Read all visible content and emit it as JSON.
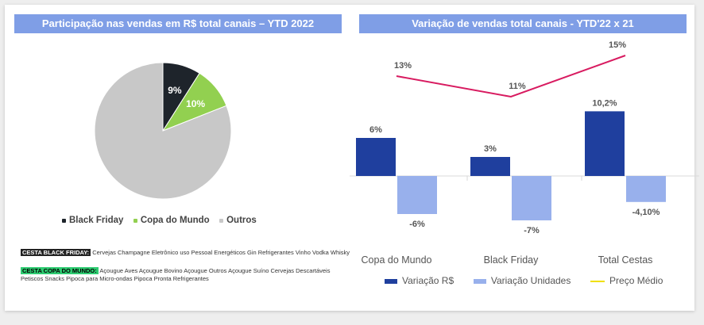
{
  "pie_panel": {
    "title": "Participação nas vendas em R$ total canais – YTD 2022",
    "legend": [
      "Black Friday",
      "Copa do Mundo",
      "Outros"
    ],
    "cesta_black_friday": {
      "label": "CESTA BLACK FRIDAY:",
      "items": "Cervejas Champagne Eletrônico uso Pessoal Energéticos Gin Refrigerantes Vinho Vodka Whisky"
    },
    "cesta_copa": {
      "label": "CESTA COPA DO MUNDO:",
      "items_line1": "Açougue Aves Açougue Bovino Açougue Outros Açougue Suíno Cervejas Descartáveis",
      "items_line2": "Petiscos Snacks Pipoca para Micro-ondas Pipoca Pronta Refrigerantes"
    }
  },
  "bar_panel": {
    "title": "Variação de vendas total canais - YTD'22 x 21",
    "legend": [
      "Variação R$",
      "Variação Unidades",
      "Preço Médio"
    ]
  },
  "colors": {
    "black_friday": "#1e242b",
    "copa": "#92d050",
    "outros": "#c8c8c8",
    "variacao_rs": "#1f3f9e",
    "variacao_unidades": "#98b0ec",
    "preco_medio": "#d81b60",
    "preco_medio_legend": "#f0e000"
  },
  "chart_data": [
    {
      "type": "pie",
      "title": "Participação nas vendas em R$ total canais – YTD 2022",
      "slices": [
        {
          "name": "Black Friday",
          "value": 9,
          "label": "9%"
        },
        {
          "name": "Copa do Mundo",
          "value": 10,
          "label": "10%"
        },
        {
          "name": "Outros",
          "value": 81,
          "label": ""
        }
      ],
      "legend_position": "bottom"
    },
    {
      "type": "bar",
      "title": "Variação de vendas total canais - YTD'22 x 21",
      "categories": [
        "Copa do Mundo",
        "Black Friday",
        "Total Cestas"
      ],
      "series": [
        {
          "name": "Variação R$",
          "values": [
            6,
            3,
            10.2
          ],
          "labels": [
            "6%",
            "3%",
            "10,2%"
          ]
        },
        {
          "name": "Variação Unidades",
          "values": [
            -6,
            -7,
            -4.1
          ],
          "labels": [
            "-6%",
            "-7%",
            "-4,10%"
          ]
        },
        {
          "name": "Preço Médio",
          "type": "line",
          "values": [
            13,
            11,
            15
          ],
          "labels": [
            "13%",
            "11%",
            "15%"
          ]
        }
      ],
      "legend_position": "bottom",
      "grid": false
    }
  ]
}
